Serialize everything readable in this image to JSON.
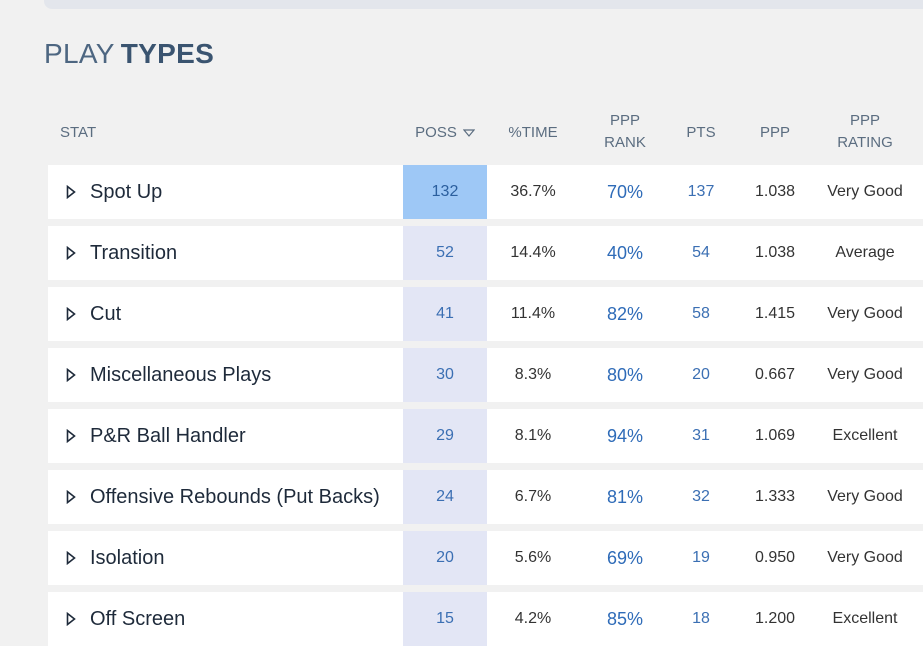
{
  "title": {
    "word1": "PLAY",
    "word2": "TYPES"
  },
  "headers": {
    "stat": "STAT",
    "poss": "POSS",
    "time": "%TIME",
    "rank_line1": "PPP",
    "rank_line2": "RANK",
    "pts": "PTS",
    "ppp": "PPP",
    "rating_line1": "PPP",
    "rating_line2": "RATING"
  },
  "rows": [
    {
      "name": "Spot Up",
      "poss": "132",
      "time": "36.7%",
      "rank": "70%",
      "pts": "137",
      "ppp": "1.038",
      "rating": "Very Good"
    },
    {
      "name": "Transition",
      "poss": "52",
      "time": "14.4%",
      "rank": "40%",
      "pts": "54",
      "ppp": "1.038",
      "rating": "Average"
    },
    {
      "name": "Cut",
      "poss": "41",
      "time": "11.4%",
      "rank": "82%",
      "pts": "58",
      "ppp": "1.415",
      "rating": "Very Good"
    },
    {
      "name": "Miscellaneous Plays",
      "poss": "30",
      "time": "8.3%",
      "rank": "80%",
      "pts": "20",
      "ppp": "0.667",
      "rating": "Very Good"
    },
    {
      "name": "P&R Ball Handler",
      "poss": "29",
      "time": "8.1%",
      "rank": "94%",
      "pts": "31",
      "ppp": "1.069",
      "rating": "Excellent"
    },
    {
      "name": "Offensive Rebounds (Put Backs)",
      "poss": "24",
      "time": "6.7%",
      "rank": "81%",
      "pts": "32",
      "ppp": "1.333",
      "rating": "Very Good"
    },
    {
      "name": "Isolation",
      "poss": "20",
      "time": "5.6%",
      "rank": "69%",
      "pts": "19",
      "ppp": "0.950",
      "rating": "Very Good"
    },
    {
      "name": "Off Screen",
      "poss": "15",
      "time": "4.2%",
      "rank": "85%",
      "pts": "18",
      "ppp": "1.200",
      "rating": "Excellent"
    }
  ]
}
